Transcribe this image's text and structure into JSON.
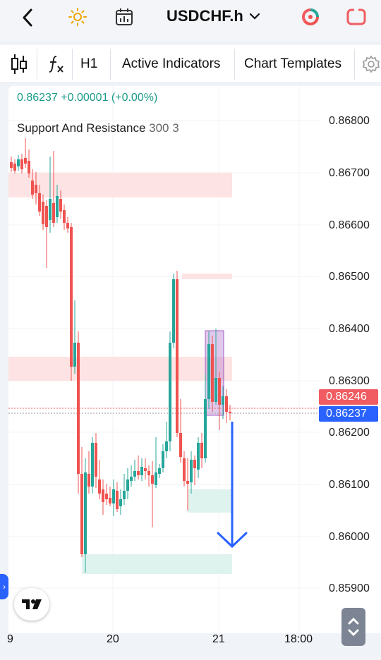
{
  "header": {
    "symbol": "USDCHF.h",
    "icons": [
      "back-chevron-icon",
      "sun-icon",
      "calendar-icon",
      "symbol-dropdown-icon",
      "circular-ring-icon",
      "square-frame-icon"
    ]
  },
  "toolbar": {
    "timeframe": "H1",
    "indicators_label": "Active Indicators",
    "templates_label": "Chart Templates",
    "icons": [
      "candles-icon",
      "fx-icon",
      "gear-icon"
    ]
  },
  "chart": {
    "status": "0.86237 +0.00001 (+0.00%)",
    "study_name": "Support And Resistance",
    "study_params": "300 3",
    "price_axis": [
      "0.86800",
      "0.86700",
      "0.86600",
      "0.86500",
      "0.86400",
      "0.86300",
      "0.86200",
      "0.86100",
      "0.86000",
      "0.85900"
    ],
    "ask_tag": "0.86246",
    "bid_tag": "0.86237",
    "time_axis": [
      "9",
      "20",
      "21",
      "18:00"
    ],
    "colors": {
      "up": "#26a69a",
      "down": "#ef5350",
      "ask": "#f05c61",
      "bid": "#2962ff",
      "arrow": "#2962ff"
    }
  }
}
